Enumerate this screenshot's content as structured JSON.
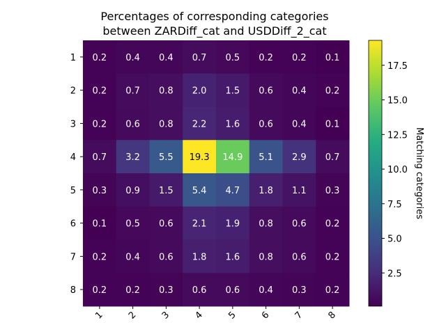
{
  "chart_data": {
    "type": "heatmap",
    "title_line1": "Percentages of corresponding categories",
    "title_line2": "between ZARDiff_cat and USDDiff_2_cat",
    "rows": [
      "1",
      "2",
      "3",
      "4",
      "5",
      "6",
      "7",
      "8"
    ],
    "cols": [
      "1",
      "2",
      "3",
      "4",
      "5",
      "6",
      "7",
      "8"
    ],
    "values": [
      [
        0.2,
        0.4,
        0.4,
        0.7,
        0.5,
        0.2,
        0.2,
        0.1
      ],
      [
        0.2,
        0.7,
        0.8,
        2.0,
        1.5,
        0.6,
        0.4,
        0.2
      ],
      [
        0.2,
        0.6,
        0.8,
        2.2,
        1.6,
        0.6,
        0.4,
        0.1
      ],
      [
        0.7,
        3.2,
        5.5,
        19.3,
        14.9,
        5.1,
        2.9,
        0.7
      ],
      [
        0.3,
        0.9,
        1.5,
        5.4,
        4.7,
        1.8,
        1.1,
        0.3
      ],
      [
        0.1,
        0.5,
        0.6,
        2.1,
        1.9,
        0.8,
        0.6,
        0.2
      ],
      [
        0.2,
        0.4,
        0.6,
        1.8,
        1.6,
        0.8,
        0.6,
        0.2
      ],
      [
        0.2,
        0.2,
        0.3,
        0.6,
        0.6,
        0.4,
        0.3,
        0.2
      ]
    ],
    "colorbar": {
      "label": "Matching categories",
      "min": 0.1,
      "max": 19.3,
      "ticks": [
        "2.5",
        "5.0",
        "7.5",
        "10.0",
        "12.5",
        "15.0",
        "17.5"
      ],
      "colormap": "viridis"
    }
  }
}
